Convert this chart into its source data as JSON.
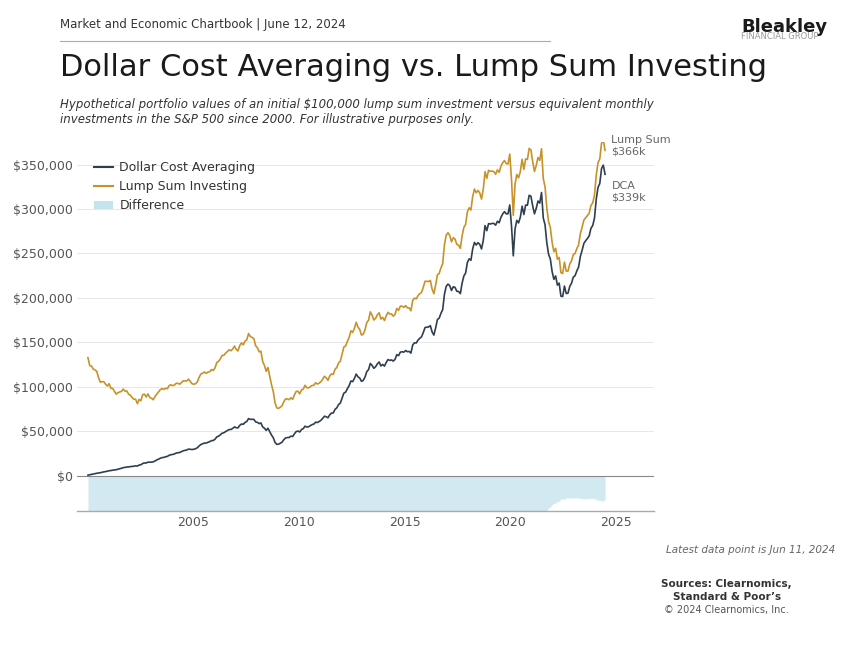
{
  "title": "Dollar Cost Averaging vs. Lump Sum Investing",
  "subtitle": "Hypothetical portfolio values of an initial $100,000 lump sum investment versus equivalent monthly\ninvestments in the S&P 500 since 2000. For illustrative purposes only.",
  "header": "Market and Economic Chartbook | June 12, 2024",
  "latest_note": "Latest data point is Jun 11, 2024",
  "sources_line1": "Sources: Clearnomics,",
  "sources_line2": "Standard & Poor’s",
  "sources_line3": "© 2024 Clearnomics, Inc.",
  "dca_color": "#2f3f4f",
  "lump_color": "#c8922a",
  "diff_color": "#add8e6",
  "background_color": "#ffffff",
  "ytick_labels": [
    "$0",
    "$50,000",
    "$100,000",
    "$150,000",
    "$200,000",
    "$250,000",
    "$300,000",
    "$350,000"
  ],
  "ytick_values": [
    0,
    50000,
    100000,
    150000,
    200000,
    250000,
    300000,
    350000
  ],
  "ylim": [
    -40000,
    375000
  ],
  "legend_labels": [
    "Dollar Cost Averaging",
    "Lump Sum Investing",
    "Difference"
  ],
  "end_label_lump": "Lump Sum\n$366k",
  "end_label_dca": "DCA\n$339k",
  "lump_final": 366000,
  "dca_final": 339000,
  "bleakley_text": "Bleakley",
  "financial_group_text": "FINANCIAL GROUP"
}
